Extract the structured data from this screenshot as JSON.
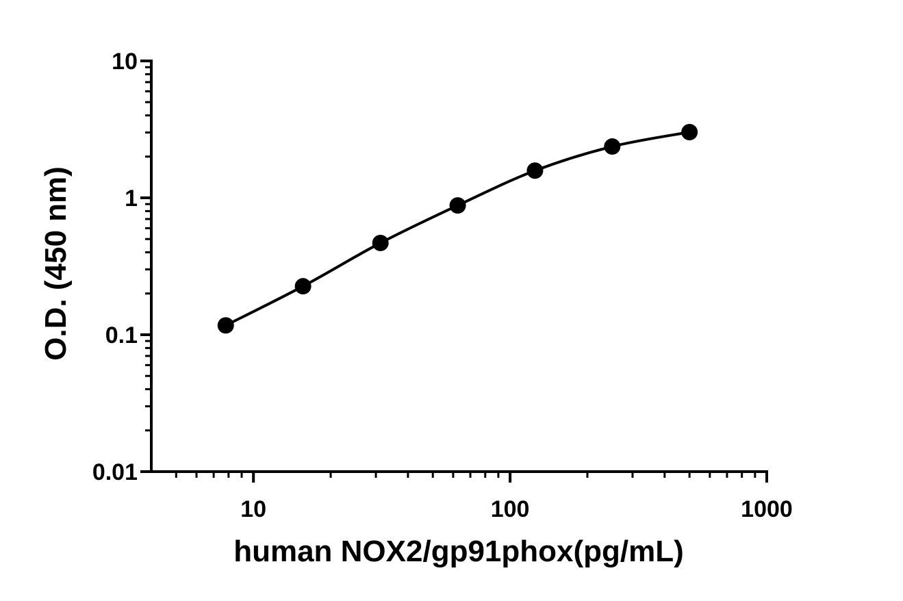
{
  "chart_data": {
    "type": "scatter",
    "x_label": "human NOX2/gp91phox(pg/mL)",
    "y_label": "O.D. (450 nm)",
    "x": [
      7.8,
      15.6,
      31.25,
      62.5,
      125,
      250,
      500
    ],
    "series": [
      {
        "color": "#000000",
        "values": [
          0.117,
          0.226,
          0.468,
          0.88,
          1.58,
          2.37,
          3.02
        ]
      }
    ],
    "fit_line": true,
    "xscale": "log",
    "yscale": "log",
    "xlim": [
      4,
      1000
    ],
    "ylim": [
      0.01,
      10
    ],
    "xticks": [
      10,
      100,
      1000
    ],
    "yticks": [
      0.01,
      0.1,
      1,
      10
    ]
  }
}
